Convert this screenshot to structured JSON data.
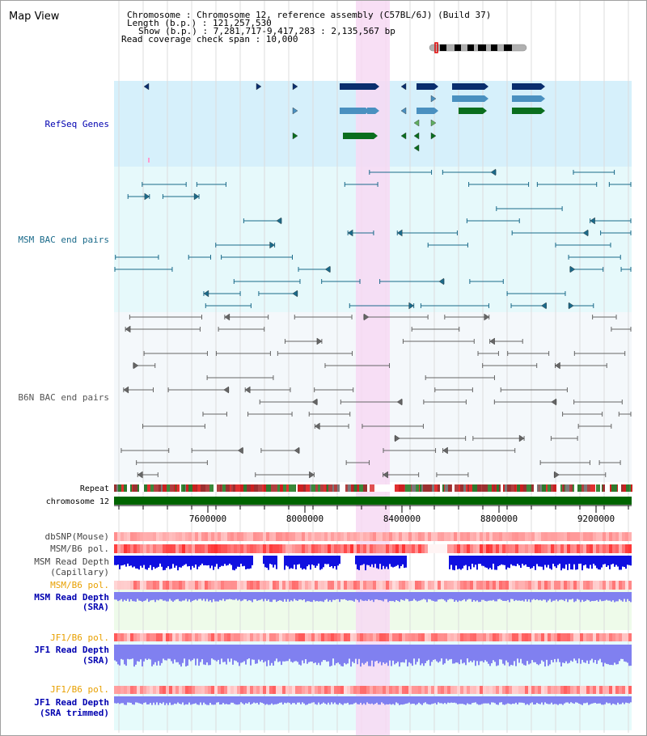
{
  "app": {
    "title": "Map View"
  },
  "header": {
    "line1": "Chromosome     : Chromosome 12, reference assembly (C57BL/6J) (Build 37)",
    "line2": "Length (b.p.) : 121,257,530",
    "line3": "Show (b.p.) : 7,281,717-9,417,283 : 2,135,567 bp",
    "line4": "Read coverage check span : 10,000"
  },
  "colors": {
    "refseq_bg": "#d6f0fb",
    "bac_bg": "#e6f9fb",
    "highlight": "#f7d9f3",
    "gene_dark": "#0a2e6e",
    "gene_mid": "#4a90c0",
    "gene_green": "#0a6e1e",
    "chrom_bar": "#006400",
    "msm_bac": "#1a6a8a",
    "b6n_bac": "#666666",
    "depth_blue": "#1010e0",
    "depth_light": "#8080f0",
    "pol_red": "#ff3030",
    "label_blue": "#0000b0",
    "label_orange": "#e8a000"
  },
  "tracks": {
    "refseq": "RefSeq Genes",
    "msm_bac": "MSM BAC end pairs",
    "b6n_bac": "B6N BAC end pairs",
    "repeat": "Repeat",
    "chromosome": "chromosome 12",
    "dbsnp": "dbSNP(Mouse)",
    "msm_pol": "MSM/B6 pol.",
    "msm_depth_cap_1": "MSM Read Depth",
    "msm_depth_cap_2": "(Capillary)",
    "msm_pol2": "MSM/B6 pol.",
    "msm_depth_sra_1": "MSM Read Depth",
    "msm_depth_sra_2": "(SRA)",
    "jf1_pol": "JF1/B6 pol.",
    "jf1_depth_1": "JF1 Read Depth",
    "jf1_depth_2": "(SRA)",
    "jf1_pol2": "JF1/B6 pol.",
    "jf1_trim_1": "JF1 Read Depth",
    "jf1_trim_2": "(SRA trimmed)"
  },
  "axis": {
    "ticks": [
      "7600000",
      "8000000",
      "8400000",
      "8800000",
      "9200000"
    ],
    "range": [
      7281717,
      9417283
    ]
  }
}
